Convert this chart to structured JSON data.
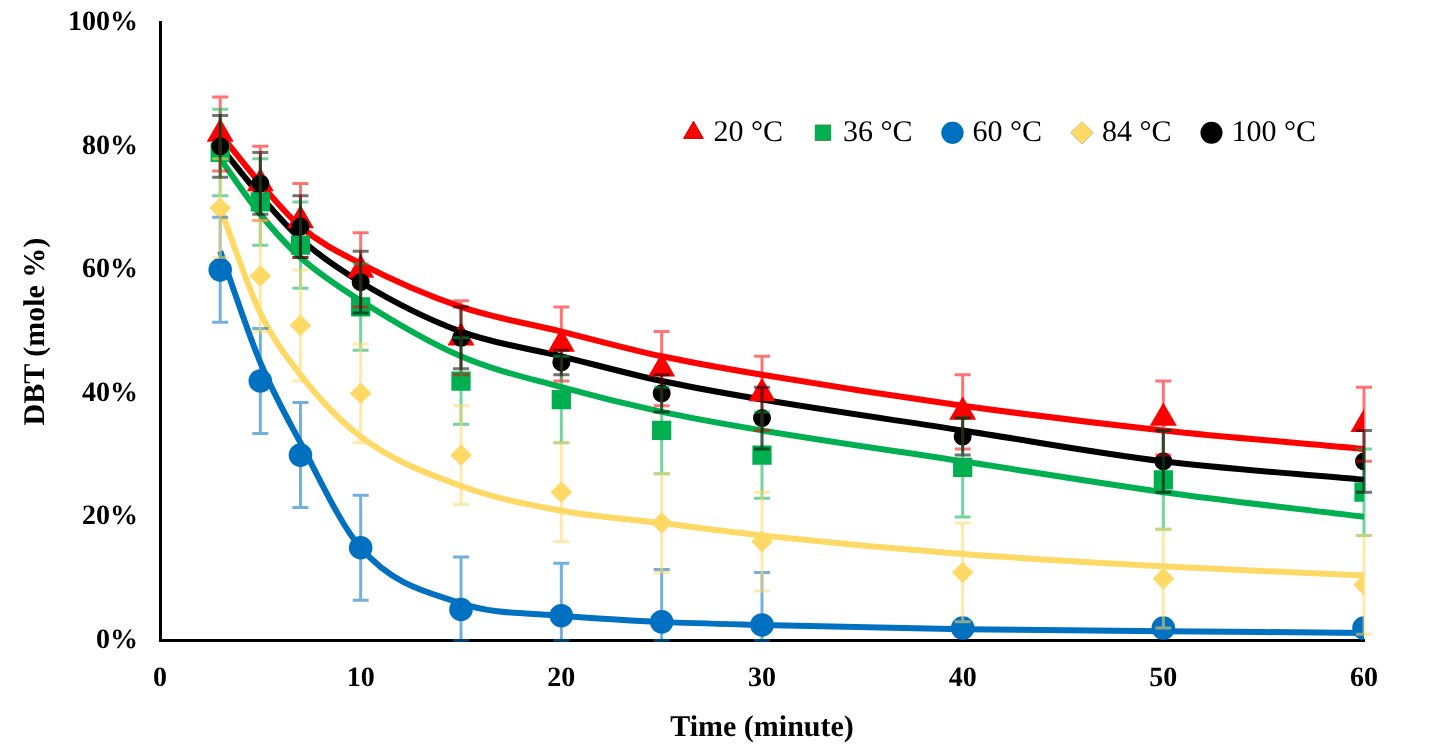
{
  "chart_data": {
    "type": "scatter",
    "xlabel": "Time (minute)",
    "ylabel": "DBT (mole %)",
    "xlim": [
      0,
      60
    ],
    "xticks": [
      0,
      10,
      20,
      30,
      40,
      50,
      60
    ],
    "ylim": [
      0,
      100
    ],
    "yticks": [
      {
        "value": 0,
        "label": "0%"
      },
      {
        "value": 20,
        "label": "20%"
      },
      {
        "value": 40,
        "label": "40%"
      },
      {
        "value": 60,
        "label": "60%"
      },
      {
        "value": 80,
        "label": "80%"
      },
      {
        "value": 100,
        "label": "100%"
      }
    ],
    "grid": false,
    "legend": "top right",
    "x": [
      3,
      5,
      7,
      10,
      15,
      20,
      25,
      30,
      40,
      50,
      60
    ],
    "series": [
      {
        "type": "line",
        "marker": "none",
        "color": "#ff0000",
        "x": [
          3,
          5,
          7,
          10,
          15,
          20,
          25,
          30,
          40,
          50,
          60
        ],
        "values": [
          82,
          74,
          67,
          61,
          54,
          50,
          46,
          43,
          38,
          34,
          31
        ]
      },
      {
        "type": "line",
        "marker": "none",
        "color": "#00b050",
        "x": [
          3,
          5,
          7,
          10,
          15,
          20,
          25,
          30,
          40,
          50,
          60
        ],
        "values": [
          78,
          69,
          62,
          55,
          46,
          41,
          37,
          34,
          29,
          24,
          20
        ]
      },
      {
        "type": "line",
        "marker": "none",
        "color": "#0070c0",
        "x": [
          3,
          5,
          7,
          10,
          15,
          20,
          25,
          30,
          40,
          50,
          60
        ],
        "values": [
          63,
          45,
          32,
          15,
          6,
          4,
          3,
          2.5,
          1.8,
          1.5,
          1.2
        ]
      },
      {
        "type": "line",
        "marker": "none",
        "color": "#ffd966",
        "x": [
          3,
          5,
          7,
          10,
          15,
          20,
          25,
          30,
          40,
          50,
          60
        ],
        "values": [
          70,
          53,
          43,
          33,
          25,
          21,
          19,
          17,
          14,
          12,
          10.5
        ]
      },
      {
        "type": "line",
        "marker": "none",
        "color": "#000000",
        "x": [
          3,
          5,
          7,
          10,
          15,
          20,
          25,
          30,
          40,
          50,
          60
        ],
        "values": [
          80,
          72,
          65,
          58,
          50,
          46,
          42,
          39,
          34,
          29,
          26
        ]
      },
      {
        "name": "20 °C",
        "marker": "triangle",
        "color": "#ff0000",
        "values": [
          82,
          74,
          68,
          60,
          49,
          48,
          44,
          40,
          37,
          36,
          35
        ],
        "errors": [
          6,
          6,
          6,
          6,
          6,
          6,
          6,
          6,
          6,
          6,
          6
        ]
      },
      {
        "name": "36 °C",
        "marker": "square",
        "color": "#00b050",
        "values": [
          79,
          71,
          64,
          54,
          42,
          39,
          34,
          30,
          28,
          26,
          24
        ],
        "errors": [
          7,
          7,
          7,
          7,
          7,
          7,
          7,
          7,
          8,
          8,
          7
        ]
      },
      {
        "name": "60 °C",
        "marker": "circle",
        "color": "#0070c0",
        "values": [
          60,
          42,
          30,
          15,
          5,
          4,
          3,
          2.5,
          2,
          2,
          2
        ],
        "errors": [
          8.5,
          8.5,
          8.5,
          8.5,
          [
            0,
            13.5
          ],
          [
            0,
            12.5
          ],
          [
            0,
            11.5
          ],
          [
            0,
            11
          ],
          null,
          null,
          null
        ]
      },
      {
        "name": "84 °C",
        "marker": "diamond",
        "color": "#ffd966",
        "values": [
          70,
          59,
          51,
          40,
          30,
          24,
          19,
          16,
          11,
          10,
          9
        ],
        "errors": [
          8,
          9,
          9,
          8,
          8,
          8,
          8,
          8,
          8,
          8,
          8
        ]
      },
      {
        "name": "100 °C",
        "marker": "circle",
        "color": "#000000",
        "values": [
          80,
          74,
          67,
          58,
          49,
          45,
          40,
          36,
          33,
          29,
          29
        ],
        "errors": [
          5,
          5,
          5,
          5,
          5,
          2,
          3,
          5,
          3,
          5,
          5
        ]
      }
    ]
  }
}
